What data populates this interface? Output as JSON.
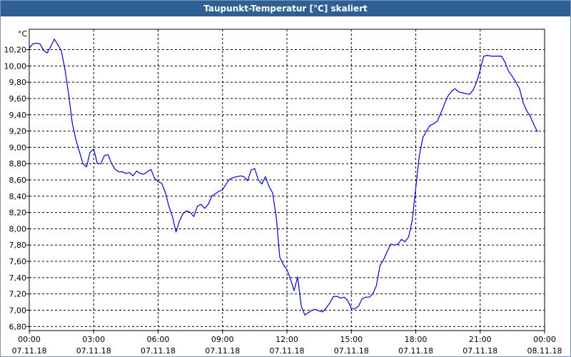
{
  "window": {
    "title": "Taupunkt-Temperatur [°C] skaliert"
  },
  "colors": {
    "titlebar": "#2f5f93",
    "line": "#0000cc",
    "grid": "#000000",
    "background": "#ffffff"
  },
  "chart_data": {
    "type": "line",
    "title": "Taupunkt-Temperatur [°C] skaliert",
    "ylabel": "°C",
    "ylim": [
      6.75,
      10.45
    ],
    "xlim": [
      "07.11.18 00:00",
      "08.11.18 00:00"
    ],
    "grid": true,
    "y_ticks": [
      "10,20",
      "10,00",
      "9,80",
      "9,60",
      "9,40",
      "9,20",
      "9,00",
      "8,80",
      "8,60",
      "8,40",
      "8,20",
      "8,00",
      "7,80",
      "7,60",
      "7,40",
      "7,20",
      "7,00",
      "6,80"
    ],
    "x_ticks": [
      {
        "time": "00:00",
        "date": "07.11.18"
      },
      {
        "time": "03:00",
        "date": "07.11.18"
      },
      {
        "time": "06:00",
        "date": "07.11.18"
      },
      {
        "time": "09:00",
        "date": "07.11.18"
      },
      {
        "time": "12:00",
        "date": "07.11.18"
      },
      {
        "time": "15:00",
        "date": "07.11.18"
      },
      {
        "time": "18:00",
        "date": "07.11.18"
      },
      {
        "time": "21:00",
        "date": "07.11.18"
      },
      {
        "time": "00:00",
        "date": "08.11.18"
      }
    ],
    "series": [
      {
        "points": [
          [
            "07.11.18 00:00",
            10.22
          ],
          [
            "07.11.18 00:10",
            10.27
          ],
          [
            "07.11.18 00:20",
            10.28
          ],
          [
            "07.11.18 00:30",
            10.27
          ],
          [
            "07.11.18 00:40",
            10.19
          ],
          [
            "07.11.18 00:50",
            10.16
          ],
          [
            "07.11.18 01:00",
            10.24
          ],
          [
            "07.11.18 01:10",
            10.33
          ],
          [
            "07.11.18 01:20",
            10.26
          ],
          [
            "07.11.18 01:30",
            10.18
          ],
          [
            "07.11.18 01:40",
            9.95
          ],
          [
            "07.11.18 01:50",
            9.65
          ],
          [
            "07.11.18 02:00",
            9.3
          ],
          [
            "07.11.18 02:10",
            9.1
          ],
          [
            "07.11.18 02:20",
            8.95
          ],
          [
            "07.11.18 02:30",
            8.8
          ],
          [
            "07.11.18 02:40",
            8.76
          ],
          [
            "07.11.18 02:50",
            8.94
          ],
          [
            "07.11.18 03:00",
            8.98
          ],
          [
            "07.11.18 03:10",
            8.8
          ],
          [
            "07.11.18 03:20",
            8.8
          ],
          [
            "07.11.18 03:30",
            8.9
          ],
          [
            "07.11.18 03:40",
            8.91
          ],
          [
            "07.11.18 03:50",
            8.8
          ],
          [
            "07.11.18 04:00",
            8.73
          ],
          [
            "07.11.18 04:10",
            8.7
          ],
          [
            "07.11.18 04:20",
            8.7
          ],
          [
            "07.11.18 04:30",
            8.68
          ],
          [
            "07.11.18 04:40",
            8.69
          ],
          [
            "07.11.18 04:50",
            8.65
          ],
          [
            "07.11.18 05:00",
            8.71
          ],
          [
            "07.11.18 05:10",
            8.68
          ],
          [
            "07.11.18 05:20",
            8.67
          ],
          [
            "07.11.18 05:30",
            8.7
          ],
          [
            "07.11.18 05:40",
            8.73
          ],
          [
            "07.11.18 05:50",
            8.62
          ],
          [
            "07.11.18 06:00",
            8.58
          ],
          [
            "07.11.18 06:10",
            8.56
          ],
          [
            "07.11.18 06:20",
            8.45
          ],
          [
            "07.11.18 06:30",
            8.28
          ],
          [
            "07.11.18 06:40",
            8.15
          ],
          [
            "07.11.18 06:50",
            7.96
          ],
          [
            "07.11.18 07:00",
            8.1
          ],
          [
            "07.11.18 07:10",
            8.19
          ],
          [
            "07.11.18 07:20",
            8.22
          ],
          [
            "07.11.18 07:30",
            8.2
          ],
          [
            "07.11.18 07:40",
            8.15
          ],
          [
            "07.11.18 07:50",
            8.28
          ],
          [
            "07.11.18 08:00",
            8.3
          ],
          [
            "07.11.18 08:10",
            8.25
          ],
          [
            "07.11.18 08:20",
            8.3
          ],
          [
            "07.11.18 08:30",
            8.4
          ],
          [
            "07.11.18 08:40",
            8.43
          ],
          [
            "07.11.18 08:50",
            8.46
          ],
          [
            "07.11.18 09:00",
            8.48
          ],
          [
            "07.11.18 09:10",
            8.55
          ],
          [
            "07.11.18 09:20",
            8.61
          ],
          [
            "07.11.18 09:30",
            8.63
          ],
          [
            "07.11.18 09:40",
            8.64
          ],
          [
            "07.11.18 09:50",
            8.65
          ],
          [
            "07.11.18 10:00",
            8.64
          ],
          [
            "07.11.18 10:10",
            8.59
          ],
          [
            "07.11.18 10:20",
            8.72
          ],
          [
            "07.11.18 10:30",
            8.74
          ],
          [
            "07.11.18 10:40",
            8.6
          ],
          [
            "07.11.18 10:50",
            8.55
          ],
          [
            "07.11.18 11:00",
            8.64
          ],
          [
            "07.11.18 11:10",
            8.52
          ],
          [
            "07.11.18 11:20",
            8.44
          ],
          [
            "07.11.18 11:30",
            8.15
          ],
          [
            "07.11.18 11:40",
            7.65
          ],
          [
            "07.11.18 11:50",
            7.56
          ],
          [
            "07.11.18 12:00",
            7.5
          ],
          [
            "07.11.18 12:10",
            7.38
          ],
          [
            "07.11.18 12:20",
            7.24
          ],
          [
            "07.11.18 12:30",
            7.41
          ],
          [
            "07.11.18 12:40",
            7.05
          ],
          [
            "07.11.18 12:50",
            6.94
          ],
          [
            "07.11.18 13:00",
            6.97
          ],
          [
            "07.11.18 13:10",
            7.0
          ],
          [
            "07.11.18 13:20",
            7.01
          ],
          [
            "07.11.18 13:30",
            6.99
          ],
          [
            "07.11.18 13:40",
            6.98
          ],
          [
            "07.11.18 13:50",
            7.03
          ],
          [
            "07.11.18 14:00",
            7.09
          ],
          [
            "07.11.18 14:10",
            7.17
          ],
          [
            "07.11.18 14:20",
            7.17
          ],
          [
            "07.11.18 14:30",
            7.15
          ],
          [
            "07.11.18 14:40",
            7.16
          ],
          [
            "07.11.18 14:50",
            7.12
          ],
          [
            "07.11.18 15:00",
            7.02
          ],
          [
            "07.11.18 15:10",
            7.02
          ],
          [
            "07.11.18 15:20",
            7.05
          ],
          [
            "07.11.18 15:30",
            7.14
          ],
          [
            "07.11.18 15:40",
            7.16
          ],
          [
            "07.11.18 15:50",
            7.16
          ],
          [
            "07.11.18 16:00",
            7.2
          ],
          [
            "07.11.18 16:10",
            7.3
          ],
          [
            "07.11.18 16:20",
            7.55
          ],
          [
            "07.11.18 16:30",
            7.62
          ],
          [
            "07.11.18 16:40",
            7.72
          ],
          [
            "07.11.18 16:50",
            7.81
          ],
          [
            "07.11.18 17:00",
            7.8
          ],
          [
            "07.11.18 17:10",
            7.81
          ],
          [
            "07.11.18 17:20",
            7.87
          ],
          [
            "07.11.18 17:30",
            7.84
          ],
          [
            "07.11.18 17:40",
            7.9
          ],
          [
            "07.11.18 17:50",
            8.1
          ],
          [
            "07.11.18 18:00",
            8.5
          ],
          [
            "07.11.18 18:10",
            8.9
          ],
          [
            "07.11.18 18:20",
            9.12
          ],
          [
            "07.11.18 18:30",
            9.2
          ],
          [
            "07.11.18 18:40",
            9.27
          ],
          [
            "07.11.18 18:50",
            9.29
          ],
          [
            "07.11.18 19:00",
            9.32
          ],
          [
            "07.11.18 19:10",
            9.42
          ],
          [
            "07.11.18 19:20",
            9.53
          ],
          [
            "07.11.18 19:30",
            9.63
          ],
          [
            "07.11.18 19:40",
            9.69
          ],
          [
            "07.11.18 19:50",
            9.72
          ],
          [
            "07.11.18 20:00",
            9.68
          ],
          [
            "07.11.18 20:10",
            9.67
          ],
          [
            "07.11.18 20:20",
            9.66
          ],
          [
            "07.11.18 20:30",
            9.65
          ],
          [
            "07.11.18 20:40",
            9.7
          ],
          [
            "07.11.18 20:50",
            9.8
          ],
          [
            "07.11.18 21:00",
            9.95
          ],
          [
            "07.11.18 21:10",
            10.12
          ],
          [
            "07.11.18 21:20",
            10.13
          ],
          [
            "07.11.18 21:30",
            10.12
          ],
          [
            "07.11.18 21:40",
            10.12
          ],
          [
            "07.11.18 21:50",
            10.12
          ],
          [
            "07.11.18 22:00",
            10.12
          ],
          [
            "07.11.18 22:10",
            10.04
          ],
          [
            "07.11.18 22:20",
            9.93
          ],
          [
            "07.11.18 22:30",
            9.87
          ],
          [
            "07.11.18 22:40",
            9.8
          ],
          [
            "07.11.18 22:50",
            9.72
          ],
          [
            "07.11.18 23:00",
            9.55
          ],
          [
            "07.11.18 23:10",
            9.45
          ],
          [
            "07.11.18 23:20",
            9.38
          ],
          [
            "07.11.18 23:30",
            9.28
          ],
          [
            "07.11.18 23:40",
            9.19
          ]
        ]
      }
    ]
  }
}
